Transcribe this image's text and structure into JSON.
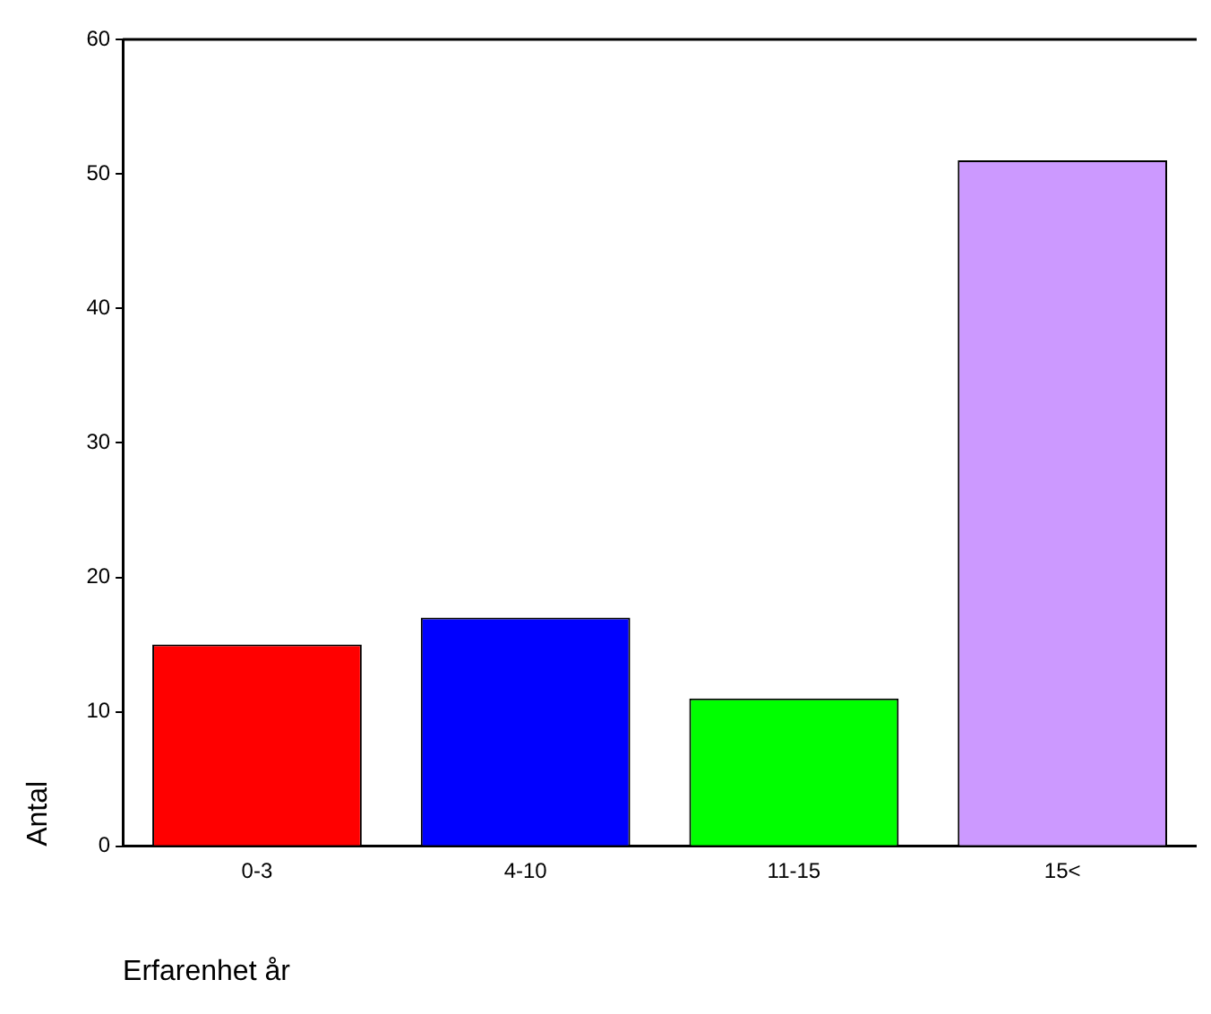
{
  "chart_data": {
    "type": "bar",
    "xlabel": "Erfarenhet år",
    "ylabel": "Antal",
    "categories": [
      "0-3",
      "4-10",
      "11-15",
      "15<"
    ],
    "values": [
      15,
      17,
      11,
      51
    ],
    "colors": [
      "#ff0000",
      "#0000ff",
      "#00ff00",
      "#cc99ff"
    ],
    "ylim": [
      0,
      60
    ],
    "yticks": [
      0,
      10,
      20,
      30,
      40,
      50,
      60
    ],
    "grid": false,
    "legend": false
  }
}
